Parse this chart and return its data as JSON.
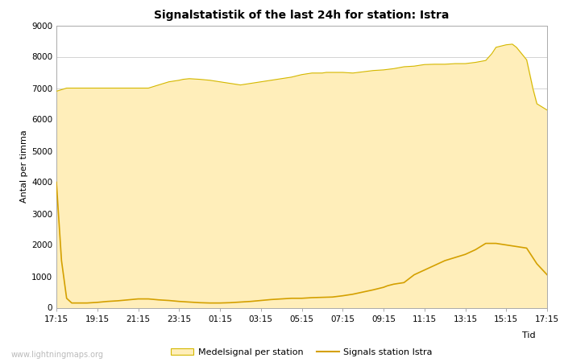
{
  "title": "Signalstatistik of the last 24h for station: Istra",
  "xlabel": "Tid",
  "ylabel": "Antal per timma",
  "ylim": [
    0,
    9000
  ],
  "yticks": [
    0,
    1000,
    2000,
    3000,
    4000,
    5000,
    6000,
    7000,
    8000,
    9000
  ],
  "xtick_labels": [
    "17:15",
    "19:15",
    "21:15",
    "23:15",
    "01:15",
    "03:15",
    "05:15",
    "07:15",
    "09:15",
    "11:15",
    "13:15",
    "15:15",
    "17:15"
  ],
  "fill_color": "#FFEEBA",
  "fill_edge_color": "#D4B800",
  "line_color": "#D4A000",
  "background_color": "#ffffff",
  "grid_color": "#cccccc",
  "watermark": "www.lightningmaps.org",
  "legend_fill_label": "Medelsignal per station",
  "legend_line_label": "Signals station Istra",
  "fill_x": [
    0,
    0.25,
    0.5,
    0.75,
    1,
    1.5,
    2,
    2.5,
    3,
    3.5,
    4,
    4.5,
    5,
    5.5,
    6,
    6.2,
    6.5,
    7,
    7.5,
    8,
    8.5,
    9,
    9.5,
    10,
    10.5,
    11,
    11.5,
    12,
    12.5,
    13,
    13.2,
    13.5,
    14,
    14.5,
    15,
    15.5,
    16,
    16.5,
    17,
    17.5,
    18,
    18.5,
    19,
    19.5,
    20,
    20.5,
    21,
    21.3,
    21.5,
    22,
    22.3,
    22.5,
    23,
    23.3,
    23.5,
    24
  ],
  "fill_y": [
    6900,
    6950,
    7000,
    7000,
    7000,
    7000,
    7000,
    7000,
    7000,
    7000,
    7000,
    7000,
    7100,
    7200,
    7250,
    7280,
    7300,
    7280,
    7250,
    7200,
    7150,
    7100,
    7150,
    7200,
    7250,
    7300,
    7350,
    7430,
    7480,
    7480,
    7500,
    7500,
    7500,
    7480,
    7520,
    7560,
    7580,
    7620,
    7680,
    7700,
    7750,
    7760,
    7760,
    7780,
    7780,
    7820,
    7880,
    8100,
    8300,
    8380,
    8400,
    8300,
    7900,
    7000,
    6500,
    6300
  ],
  "line_x": [
    0,
    0.25,
    0.5,
    0.75,
    1,
    1.5,
    2,
    2.5,
    3,
    3.5,
    4,
    4.5,
    5,
    5.5,
    6,
    6.5,
    7,
    7.5,
    8,
    8.5,
    9,
    9.5,
    10,
    10.5,
    11,
    11.5,
    12,
    12.5,
    13,
    13.5,
    14,
    14.5,
    15,
    15.5,
    16,
    16.2,
    16.5,
    17,
    17.5,
    18,
    18.5,
    19,
    19.5,
    20,
    20.5,
    21,
    21.5,
    22,
    22.5,
    23,
    23.5,
    24
  ],
  "line_y": [
    4000,
    1500,
    300,
    150,
    150,
    150,
    170,
    200,
    220,
    250,
    280,
    280,
    250,
    230,
    200,
    180,
    160,
    150,
    150,
    160,
    180,
    200,
    230,
    260,
    280,
    300,
    300,
    320,
    330,
    340,
    380,
    430,
    500,
    570,
    650,
    700,
    750,
    800,
    1050,
    1200,
    1350,
    1500,
    1600,
    1700,
    1850,
    2050,
    2050,
    2000,
    1950,
    1900,
    1400,
    1050
  ]
}
